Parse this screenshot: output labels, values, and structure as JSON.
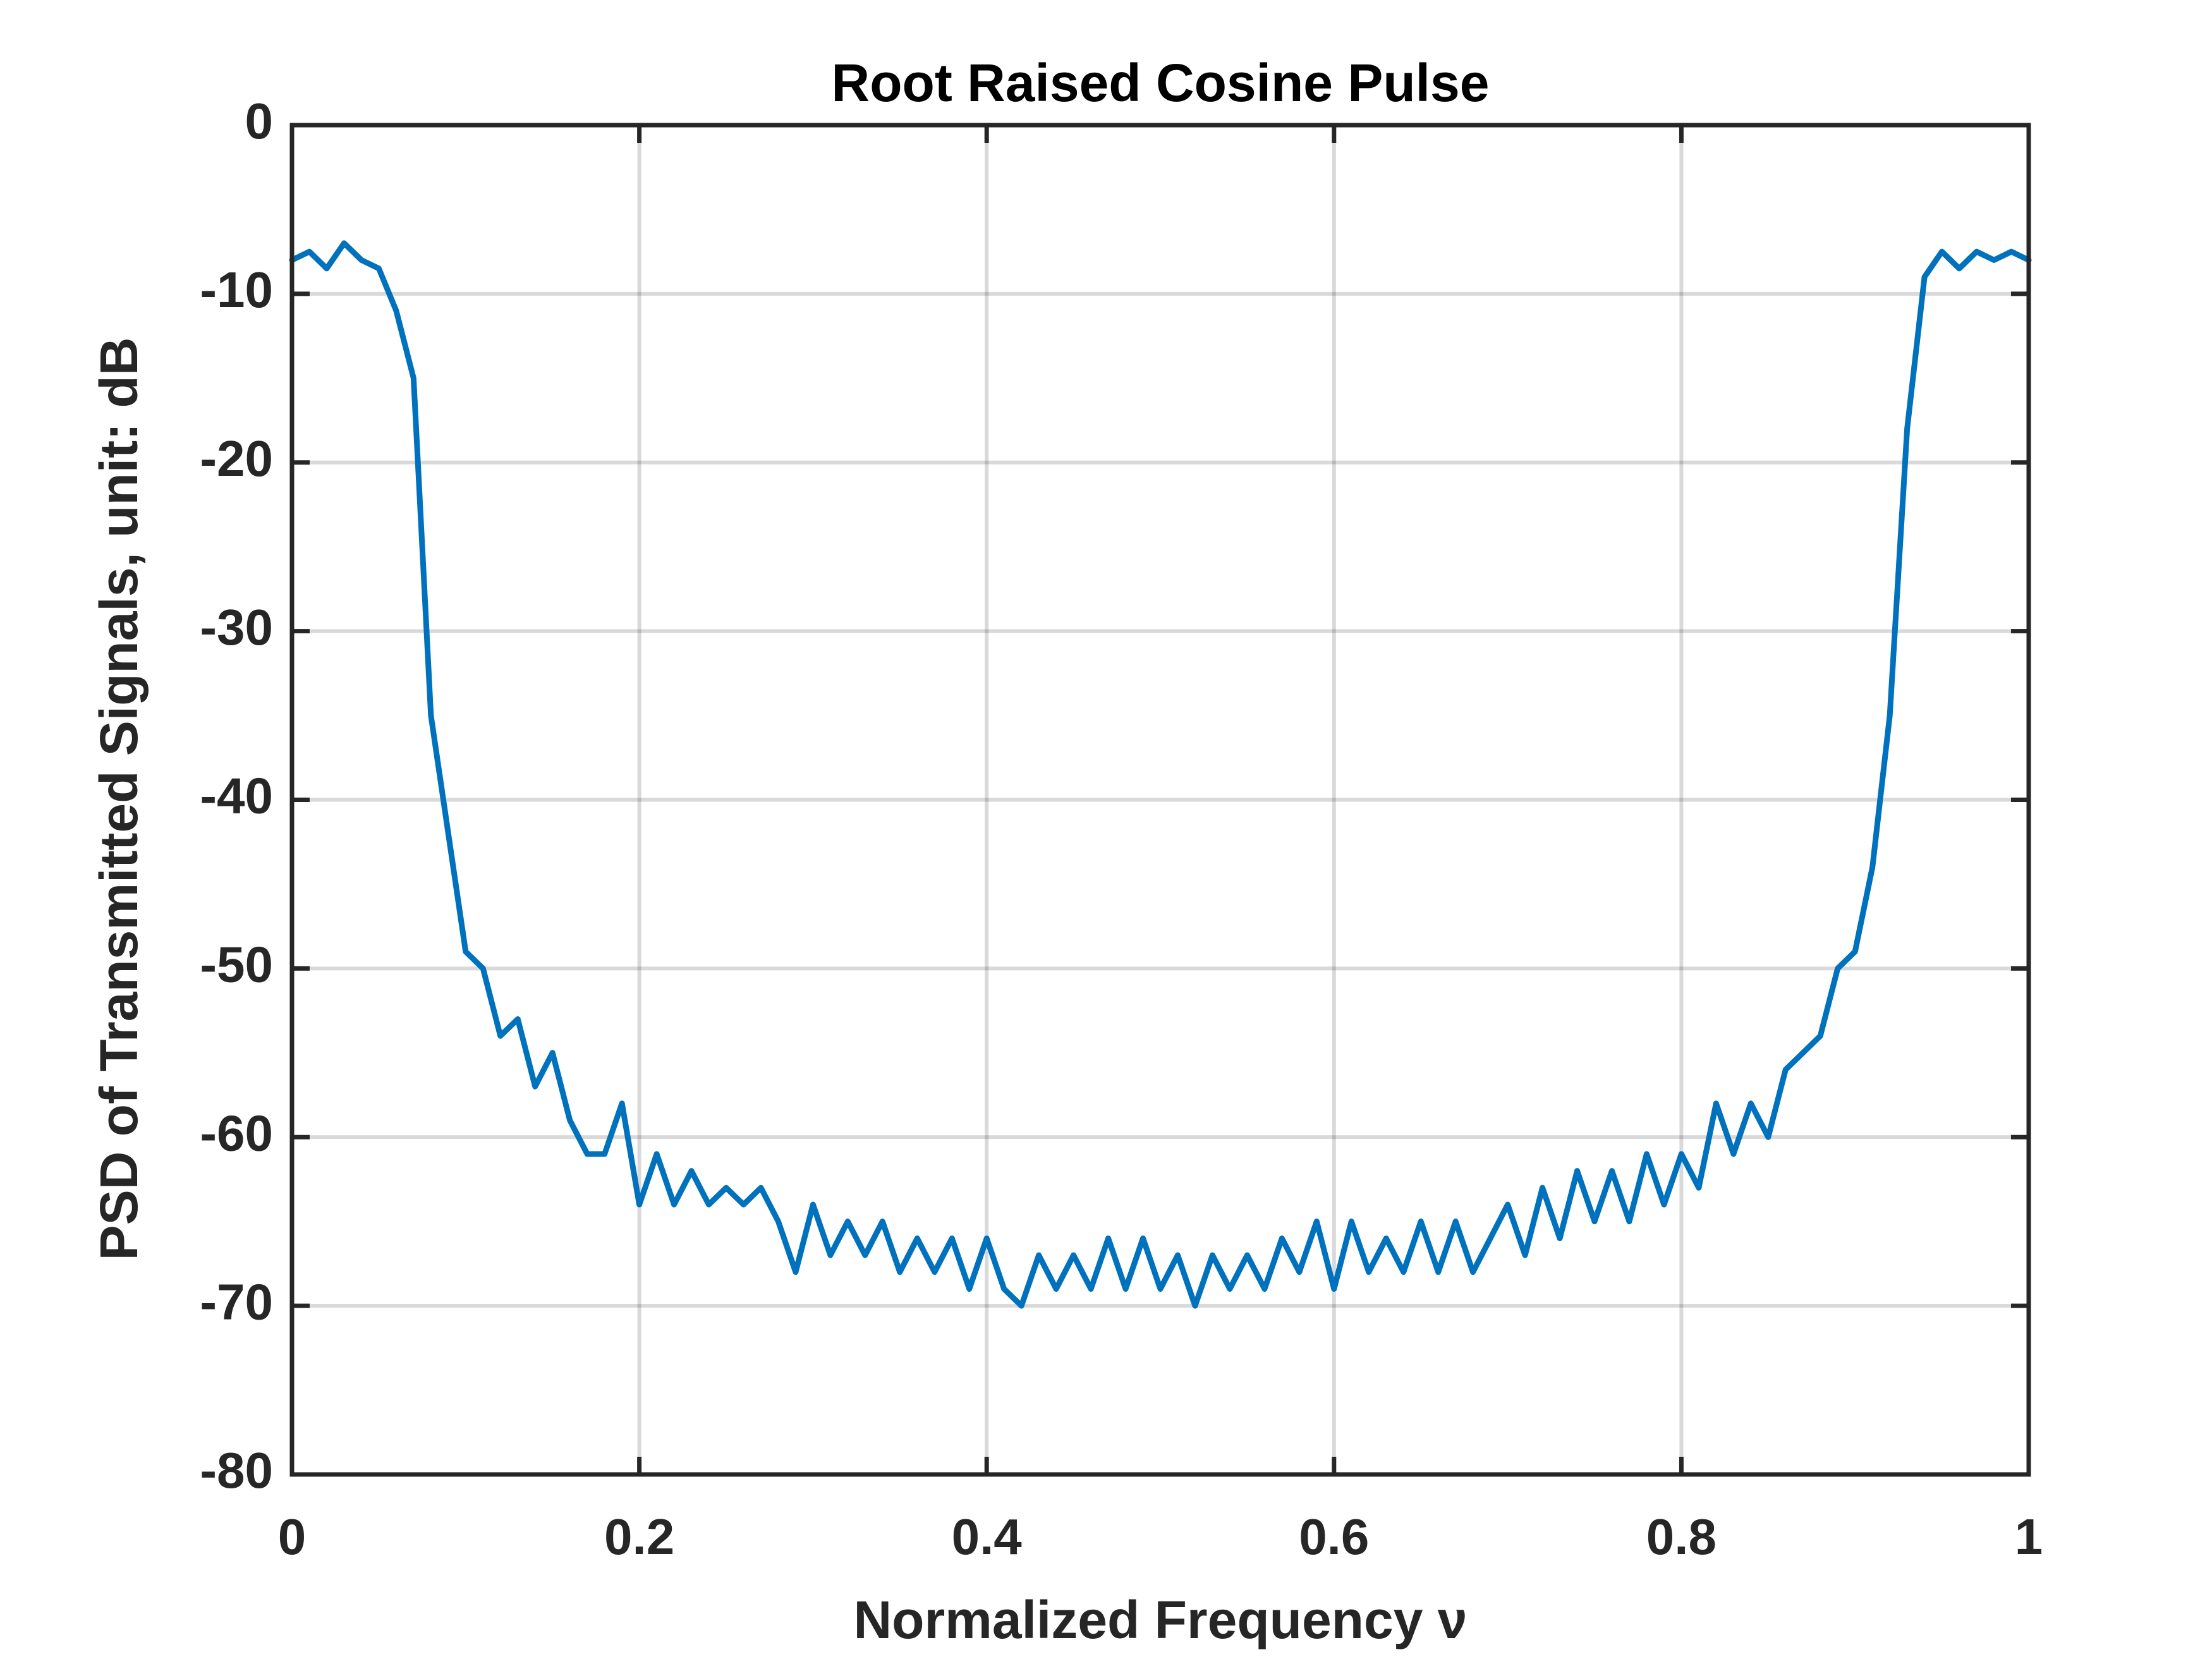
{
  "chart_data": {
    "type": "line",
    "title": "Root Raised Cosine Pulse",
    "xlabel": "Normalized Frequency ν",
    "ylabel": "PSD of Transmitted Signals, unit: dB",
    "x": [
      0,
      0.01,
      0.02,
      0.03,
      0.04,
      0.05,
      0.06,
      0.07,
      0.08,
      0.09,
      0.1,
      0.11,
      0.12,
      0.13,
      0.14,
      0.15,
      0.16,
      0.17,
      0.18,
      0.19,
      0.2,
      0.21,
      0.22,
      0.23,
      0.24,
      0.25,
      0.26,
      0.27,
      0.28,
      0.29,
      0.3,
      0.31,
      0.32,
      0.33,
      0.34,
      0.35,
      0.36,
      0.37,
      0.38,
      0.39,
      0.4,
      0.41,
      0.42,
      0.43,
      0.44,
      0.45,
      0.46,
      0.47,
      0.48,
      0.49,
      0.5,
      0.51,
      0.52,
      0.53,
      0.54,
      0.55,
      0.56,
      0.57,
      0.58,
      0.59,
      0.6,
      0.61,
      0.62,
      0.63,
      0.64,
      0.65,
      0.66,
      0.67,
      0.68,
      0.69,
      0.7,
      0.71,
      0.72,
      0.73,
      0.74,
      0.75,
      0.76,
      0.77,
      0.78,
      0.79,
      0.8,
      0.81,
      0.82,
      0.83,
      0.84,
      0.85,
      0.86,
      0.87,
      0.88,
      0.89,
      0.9,
      0.91,
      0.92,
      0.93,
      0.94,
      0.95,
      0.96,
      0.97,
      0.98,
      0.99,
      1
    ],
    "series": [
      {
        "color": "#0072bd",
        "values": [
          -8,
          -7.5,
          -8.5,
          -7,
          -8,
          -8.5,
          -11,
          -15,
          -35,
          -42,
          -49,
          -50,
          -54,
          -53,
          -57,
          -55,
          -59,
          -61,
          -61,
          -58,
          -64,
          -61,
          -64,
          -62,
          -64,
          -63,
          -64,
          -63,
          -65,
          -68,
          -64,
          -67,
          -65,
          -67,
          -65,
          -68,
          -66,
          -68,
          -66,
          -69,
          -66,
          -69,
          -70,
          -67,
          -69,
          -67,
          -69,
          -66,
          -69,
          -66,
          -69,
          -67,
          -70,
          -67,
          -69,
          -67,
          -69,
          -66,
          -68,
          -65,
          -69,
          -65,
          -68,
          -66,
          -68,
          -65,
          -68,
          -65,
          -68,
          -66,
          -64,
          -67,
          -63,
          -66,
          -62,
          -65,
          -62,
          -65,
          -61,
          -64,
          -61,
          -63,
          -58,
          -61,
          -58,
          -60,
          -56,
          -55,
          -54,
          -50,
          -49,
          -44,
          -35,
          -18,
          -9,
          -7.5,
          -8.5,
          -7.5,
          -8,
          -7.5,
          -8
        ]
      }
    ],
    "xlim": [
      0,
      1
    ],
    "xticks": [
      0,
      0.2,
      0.4,
      0.6,
      0.8,
      1
    ],
    "ylim": [
      -80,
      0
    ],
    "yticks": [
      0,
      -10,
      -20,
      -30,
      -40,
      -50,
      -60,
      -70,
      -80
    ],
    "grid": true
  }
}
